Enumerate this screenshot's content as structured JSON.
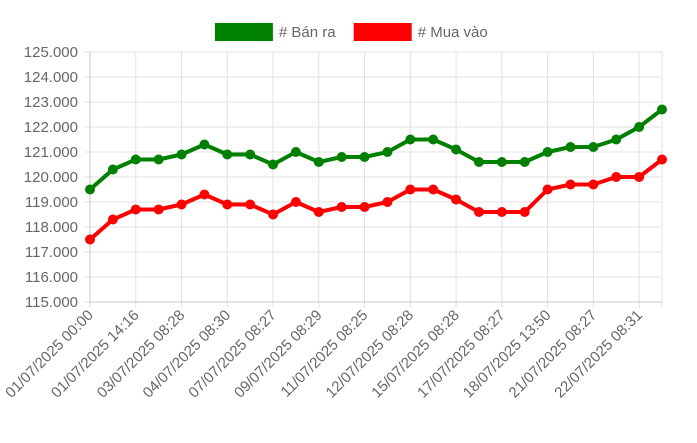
{
  "chart_data": {
    "type": "line",
    "title": "",
    "xlabel": "",
    "ylabel": "",
    "ylim": [
      115000,
      125000
    ],
    "y_ticks": [
      "125.000",
      "124.000",
      "123.000",
      "122.000",
      "121.000",
      "120.000",
      "119.000",
      "118.000",
      "117.000",
      "116.000",
      "115.000"
    ],
    "y_tick_values": [
      125000,
      124000,
      123000,
      122000,
      121000,
      120000,
      119000,
      118000,
      117000,
      116000,
      115000
    ],
    "grid": true,
    "legend_position": "top-center",
    "x": [
      "01/07/2025 00:00",
      "",
      "01/07/2025 14:16",
      "",
      "03/07/2025 08:28",
      "",
      "04/07/2025 08:30",
      "",
      "07/07/2025 08:27",
      "",
      "09/07/2025 08:29",
      "",
      "11/07/2025 08:25",
      "",
      "12/07/2025 08:28",
      "",
      "15/07/2025 08:28",
      "",
      "17/07/2025 08:27",
      "",
      "18/07/2025 13:50",
      "",
      "21/07/2025 08:27",
      "",
      "22/07/2025 08:31",
      ""
    ],
    "x_tick_labels": [
      "01/07/2025 00:00",
      "01/07/2025 14:16",
      "03/07/2025 08:28",
      "04/07/2025 08:30",
      "07/07/2025 08:27",
      "09/07/2025 08:29",
      "11/07/2025 08:25",
      "12/07/2025 08:28",
      "15/07/2025 08:28",
      "17/07/2025 08:27",
      "18/07/2025 13:50",
      "21/07/2025 08:27",
      "22/07/2025 08:31"
    ],
    "series": [
      {
        "name": "# Bán ra",
        "color": "#008000",
        "values": [
          119500,
          120300,
          120700,
          120700,
          120900,
          121300,
          120900,
          120900,
          120500,
          121000,
          120600,
          120800,
          120800,
          121000,
          121500,
          121500,
          121100,
          120600,
          120600,
          120600,
          121000,
          121200,
          121200,
          121500,
          122000,
          122700
        ]
      },
      {
        "name": "# Mua vào",
        "color": "#ff0000",
        "values": [
          117500,
          118300,
          118700,
          118700,
          118900,
          119300,
          118900,
          118900,
          118500,
          119000,
          118600,
          118800,
          118800,
          119000,
          119500,
          119500,
          119100,
          118600,
          118600,
          118600,
          119500,
          119700,
          119700,
          120000,
          120000,
          120700
        ]
      }
    ]
  }
}
